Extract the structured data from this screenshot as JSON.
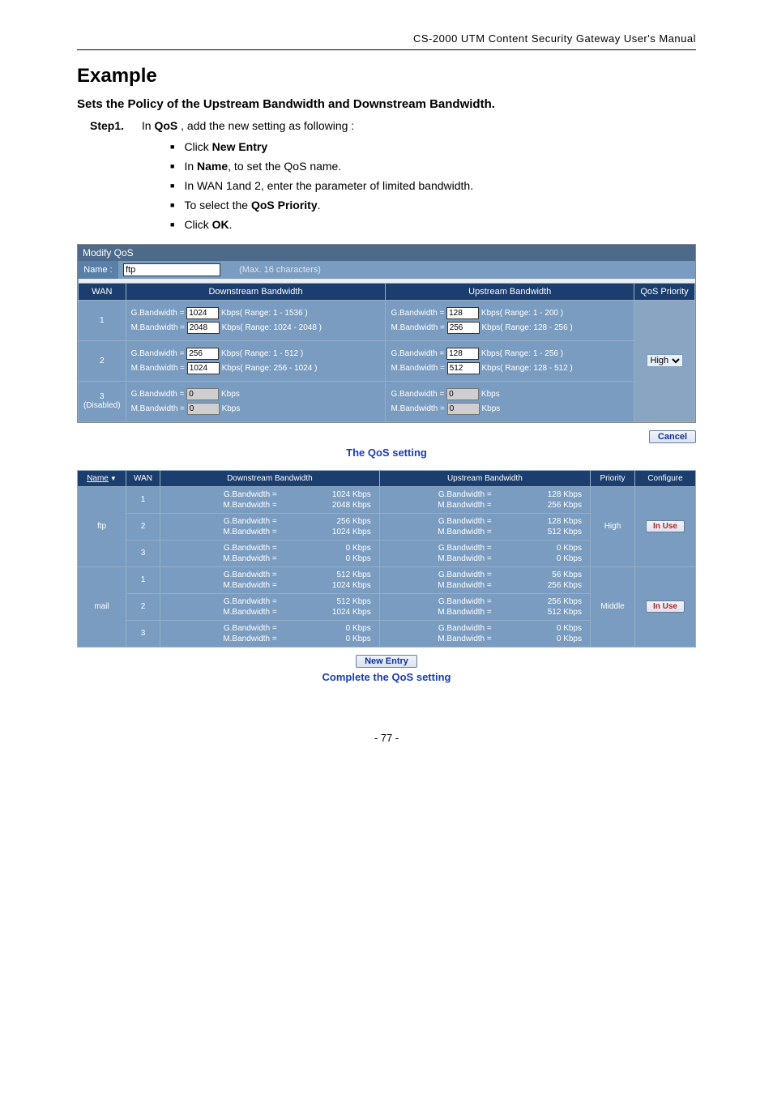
{
  "header": "CS-2000 UTM Content Security Gateway User's Manual",
  "title": "Example",
  "subheading": "Sets the Policy of the Upstream Bandwidth and Downstream Bandwidth.",
  "step": {
    "label": "Step1.",
    "intro_prefix": "In ",
    "intro_bold": "QoS",
    "intro_suffix": " , add the new setting as following  :"
  },
  "bullets": [
    {
      "pre": "Click ",
      "bold": "New Entry",
      "post": ""
    },
    {
      "pre": "In ",
      "bold": "Name",
      "post": ", to set the QoS name."
    },
    {
      "pre": "In WAN 1and 2, enter the parameter of limited bandwidth.",
      "bold": "",
      "post": ""
    },
    {
      "pre": "To select the ",
      "bold": "QoS Priority",
      "post": "."
    },
    {
      "pre": "Click ",
      "bold": "OK",
      "post": "."
    }
  ],
  "modify": {
    "title": "Modify QoS",
    "name_label": "Name :",
    "name_value": "ftp",
    "name_hint": "(Max. 16 characters)",
    "cols": {
      "wan": "WAN",
      "down": "Downstream Bandwidth",
      "up": "Upstream Bandwidth",
      "prio": "QoS Priority"
    },
    "rows": [
      {
        "wan": "1",
        "disabled": false,
        "down": {
          "g": "1024",
          "g_range": "Kbps( Range: 1 - 1536 )",
          "m": "2048",
          "m_range": "Kbps( Range: 1024 - 2048 )"
        },
        "up": {
          "g": "128",
          "g_range": "Kbps( Range: 1 - 200 )",
          "m": "256",
          "m_range": "Kbps( Range: 128 - 256 )"
        }
      },
      {
        "wan": "2",
        "disabled": false,
        "down": {
          "g": "256",
          "g_range": "Kbps( Range: 1 - 512 )",
          "m": "1024",
          "m_range": "Kbps( Range: 256 - 1024 )"
        },
        "up": {
          "g": "128",
          "g_range": "Kbps( Range: 1 - 256 )",
          "m": "512",
          "m_range": "Kbps( Range: 128 - 512 )"
        }
      },
      {
        "wan": "3",
        "wan_note": "(Disabled)",
        "disabled": true,
        "down": {
          "g": "0",
          "g_range": "Kbps",
          "m": "0",
          "m_range": "Kbps"
        },
        "up": {
          "g": "0",
          "g_range": "Kbps",
          "m": "0",
          "m_range": "Kbps"
        }
      }
    ],
    "labels": {
      "g_down": "G.Bandwidth =",
      "m_down": "M.Bandwidth =",
      "g_up": "G.Bandwidth =",
      "m_up": "M.Bandwidth ="
    },
    "priority_value": "High",
    "cancel": "Cancel"
  },
  "caption1": "The QoS setting",
  "summary": {
    "headers": {
      "name": "Name",
      "wan": "WAN",
      "down": "Downstream Bandwidth",
      "up": "Upstream Bandwidth",
      "prio": "Priority",
      "conf": "Configure"
    },
    "labels": {
      "g": "G.Bandwidth =",
      "m": "M.Bandwidth ="
    },
    "groups": [
      {
        "name": "ftp",
        "priority": "High",
        "configure": "In Use",
        "rows": [
          {
            "wan": "1",
            "down_g": "1024 Kbps",
            "down_m": "2048 Kbps",
            "up_g": "128 Kbps",
            "up_m": "256 Kbps"
          },
          {
            "wan": "2",
            "down_g": "256 Kbps",
            "down_m": "1024 Kbps",
            "up_g": "128 Kbps",
            "up_m": "512 Kbps"
          },
          {
            "wan": "3",
            "down_g": "0 Kbps",
            "down_m": "0 Kbps",
            "up_g": "0 Kbps",
            "up_m": "0 Kbps"
          }
        ]
      },
      {
        "name": "mail",
        "priority": "Middle",
        "configure": "In Use",
        "rows": [
          {
            "wan": "1",
            "down_g": "512 Kbps",
            "down_m": "1024 Kbps",
            "up_g": "56 Kbps",
            "up_m": "256 Kbps"
          },
          {
            "wan": "2",
            "down_g": "512 Kbps",
            "down_m": "1024 Kbps",
            "up_g": "256 Kbps",
            "up_m": "512 Kbps"
          },
          {
            "wan": "3",
            "down_g": "0 Kbps",
            "down_m": "0 Kbps",
            "up_g": "0 Kbps",
            "up_m": "0 Kbps"
          }
        ]
      }
    ],
    "new_entry": "New Entry"
  },
  "caption2": "Complete the QoS setting",
  "page_num": "- 77 -"
}
